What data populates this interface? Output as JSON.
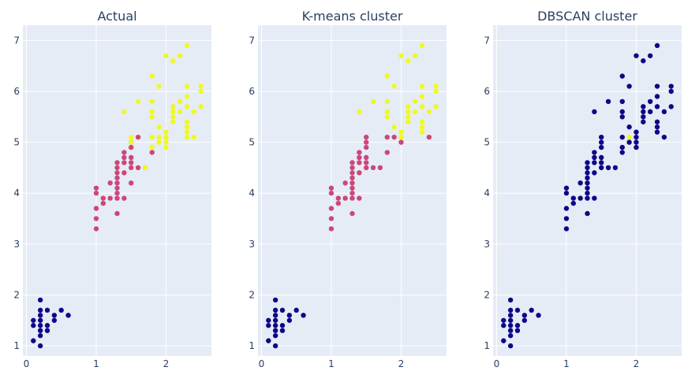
{
  "colors": {
    "plot_bg": "#e5ecf6",
    "grid": "#ffffff",
    "text": "#2a3f5f",
    "setosa": "#0d0887",
    "versicolor": "#cc4778",
    "virginica": "#f0f921"
  },
  "chart_data": [
    {
      "type": "scatter",
      "title": "Actual",
      "xlabel": "",
      "ylabel": "",
      "xlim": [
        -0.05,
        2.65
      ],
      "ylim": [
        0.8,
        7.3
      ],
      "xticks": [
        0,
        1,
        2
      ],
      "yticks": [
        1,
        2,
        3,
        4,
        5,
        6,
        7
      ],
      "grid": true,
      "legend": "none",
      "series": [
        {
          "color_key": "setosa",
          "points": [
            [
              0.1,
              1.1
            ],
            [
              0.1,
              1.4
            ],
            [
              0.1,
              1.5
            ],
            [
              0.2,
              1.0
            ],
            [
              0.2,
              1.2
            ],
            [
              0.2,
              1.3
            ],
            [
              0.2,
              1.4
            ],
            [
              0.2,
              1.5
            ],
            [
              0.2,
              1.6
            ],
            [
              0.2,
              1.7
            ],
            [
              0.2,
              1.9
            ],
            [
              0.3,
              1.3
            ],
            [
              0.3,
              1.4
            ],
            [
              0.3,
              1.7
            ],
            [
              0.4,
              1.5
            ],
            [
              0.4,
              1.6
            ],
            [
              0.5,
              1.7
            ],
            [
              0.6,
              1.6
            ]
          ]
        },
        {
          "color_key": "versicolor",
          "points": [
            [
              1.0,
              3.3
            ],
            [
              1.0,
              3.5
            ],
            [
              1.0,
              3.7
            ],
            [
              1.0,
              4.0
            ],
            [
              1.0,
              4.1
            ],
            [
              1.1,
              3.8
            ],
            [
              1.1,
              3.9
            ],
            [
              1.2,
              3.9
            ],
            [
              1.2,
              4.2
            ],
            [
              1.3,
              3.6
            ],
            [
              1.3,
              3.9
            ],
            [
              1.3,
              4.0
            ],
            [
              1.3,
              4.1
            ],
            [
              1.3,
              4.2
            ],
            [
              1.3,
              4.3
            ],
            [
              1.3,
              4.4
            ],
            [
              1.3,
              4.5
            ],
            [
              1.3,
              4.6
            ],
            [
              1.4,
              3.9
            ],
            [
              1.4,
              4.4
            ],
            [
              1.4,
              4.6
            ],
            [
              1.4,
              4.7
            ],
            [
              1.4,
              4.8
            ],
            [
              1.5,
              4.2
            ],
            [
              1.5,
              4.5
            ],
            [
              1.5,
              4.6
            ],
            [
              1.5,
              4.7
            ],
            [
              1.5,
              4.9
            ],
            [
              1.5,
              5.0
            ],
            [
              1.6,
              4.5
            ],
            [
              1.6,
              5.1
            ],
            [
              1.7,
              4.5
            ],
            [
              1.8,
              4.8
            ]
          ]
        },
        {
          "color_key": "virginica",
          "points": [
            [
              1.4,
              5.6
            ],
            [
              1.5,
              5.0
            ],
            [
              1.5,
              5.1
            ],
            [
              1.6,
              5.8
            ],
            [
              1.7,
              4.5
            ],
            [
              1.8,
              4.9
            ],
            [
              1.8,
              5.1
            ],
            [
              1.8,
              5.5
            ],
            [
              1.8,
              5.6
            ],
            [
              1.8,
              5.8
            ],
            [
              1.8,
              6.3
            ],
            [
              1.9,
              5.0
            ],
            [
              1.9,
              5.1
            ],
            [
              1.9,
              5.3
            ],
            [
              1.9,
              6.1
            ],
            [
              2.0,
              4.9
            ],
            [
              2.0,
              5.0
            ],
            [
              2.0,
              5.1
            ],
            [
              2.0,
              5.2
            ],
            [
              2.0,
              6.7
            ],
            [
              2.1,
              5.4
            ],
            [
              2.1,
              5.5
            ],
            [
              2.1,
              5.6
            ],
            [
              2.1,
              5.7
            ],
            [
              2.1,
              6.6
            ],
            [
              2.2,
              5.6
            ],
            [
              2.2,
              5.8
            ],
            [
              2.2,
              6.7
            ],
            [
              2.3,
              5.1
            ],
            [
              2.3,
              5.2
            ],
            [
              2.3,
              5.3
            ],
            [
              2.3,
              5.4
            ],
            [
              2.3,
              5.7
            ],
            [
              2.3,
              5.9
            ],
            [
              2.3,
              6.1
            ],
            [
              2.3,
              6.9
            ],
            [
              2.4,
              5.1
            ],
            [
              2.4,
              5.6
            ],
            [
              2.5,
              5.7
            ],
            [
              2.5,
              6.0
            ],
            [
              2.5,
              6.1
            ]
          ]
        }
      ]
    },
    {
      "type": "scatter",
      "title": "K-means cluster",
      "xlabel": "",
      "ylabel": "",
      "xlim": [
        -0.05,
        2.65
      ],
      "ylim": [
        0.8,
        7.3
      ],
      "xticks": [
        0,
        1,
        2
      ],
      "yticks": [
        1,
        2,
        3,
        4,
        5,
        6,
        7
      ],
      "grid": true,
      "legend": "none",
      "series": [
        {
          "color_key": "setosa",
          "points": [
            [
              0.1,
              1.1
            ],
            [
              0.1,
              1.4
            ],
            [
              0.1,
              1.5
            ],
            [
              0.2,
              1.0
            ],
            [
              0.2,
              1.2
            ],
            [
              0.2,
              1.3
            ],
            [
              0.2,
              1.4
            ],
            [
              0.2,
              1.5
            ],
            [
              0.2,
              1.6
            ],
            [
              0.2,
              1.7
            ],
            [
              0.2,
              1.9
            ],
            [
              0.3,
              1.3
            ],
            [
              0.3,
              1.4
            ],
            [
              0.3,
              1.7
            ],
            [
              0.4,
              1.5
            ],
            [
              0.4,
              1.6
            ],
            [
              0.5,
              1.7
            ],
            [
              0.6,
              1.6
            ]
          ]
        },
        {
          "color_key": "versicolor",
          "points": [
            [
              1.0,
              3.3
            ],
            [
              1.0,
              3.5
            ],
            [
              1.0,
              3.7
            ],
            [
              1.0,
              4.0
            ],
            [
              1.0,
              4.1
            ],
            [
              1.1,
              3.8
            ],
            [
              1.1,
              3.9
            ],
            [
              1.2,
              3.9
            ],
            [
              1.2,
              4.2
            ],
            [
              1.3,
              3.6
            ],
            [
              1.3,
              3.9
            ],
            [
              1.3,
              4.0
            ],
            [
              1.3,
              4.1
            ],
            [
              1.3,
              4.2
            ],
            [
              1.3,
              4.3
            ],
            [
              1.3,
              4.4
            ],
            [
              1.3,
              4.5
            ],
            [
              1.3,
              4.6
            ],
            [
              1.4,
              3.9
            ],
            [
              1.4,
              4.4
            ],
            [
              1.4,
              4.6
            ],
            [
              1.4,
              4.7
            ],
            [
              1.4,
              4.8
            ],
            [
              1.5,
              4.5
            ],
            [
              1.5,
              4.6
            ],
            [
              1.5,
              4.7
            ],
            [
              1.5,
              4.9
            ],
            [
              1.5,
              5.0
            ],
            [
              1.5,
              5.1
            ],
            [
              1.6,
              4.5
            ],
            [
              1.7,
              4.5
            ],
            [
              1.8,
              4.8
            ],
            [
              1.8,
              5.1
            ],
            [
              1.9,
              5.1
            ],
            [
              2.0,
              5.0
            ],
            [
              2.4,
              5.1
            ]
          ]
        },
        {
          "color_key": "virginica",
          "points": [
            [
              1.4,
              5.6
            ],
            [
              1.6,
              5.8
            ],
            [
              1.8,
              5.5
            ],
            [
              1.8,
              5.6
            ],
            [
              1.8,
              5.8
            ],
            [
              1.8,
              6.3
            ],
            [
              1.9,
              5.3
            ],
            [
              1.9,
              6.1
            ],
            [
              2.0,
              5.1
            ],
            [
              2.0,
              5.2
            ],
            [
              2.0,
              6.7
            ],
            [
              2.1,
              5.4
            ],
            [
              2.1,
              5.5
            ],
            [
              2.1,
              5.6
            ],
            [
              2.1,
              5.7
            ],
            [
              2.1,
              6.6
            ],
            [
              2.2,
              5.6
            ],
            [
              2.2,
              5.8
            ],
            [
              2.2,
              6.7
            ],
            [
              2.3,
              5.2
            ],
            [
              2.3,
              5.3
            ],
            [
              2.3,
              5.4
            ],
            [
              2.3,
              5.7
            ],
            [
              2.3,
              5.9
            ],
            [
              2.3,
              6.1
            ],
            [
              2.3,
              6.9
            ],
            [
              2.4,
              5.6
            ],
            [
              2.5,
              5.7
            ],
            [
              2.5,
              6.0
            ],
            [
              2.5,
              6.1
            ]
          ]
        }
      ]
    },
    {
      "type": "scatter",
      "title": "DBSCAN cluster",
      "xlabel": "",
      "ylabel": "",
      "xlim": [
        -0.05,
        2.65
      ],
      "ylim": [
        0.8,
        7.3
      ],
      "xticks": [
        0,
        1,
        2
      ],
      "yticks": [
        1,
        2,
        3,
        4,
        5,
        6,
        7
      ],
      "grid": true,
      "legend": "none",
      "series": [
        {
          "color_key": "setosa",
          "points": [
            [
              0.1,
              1.1
            ],
            [
              0.1,
              1.4
            ],
            [
              0.1,
              1.5
            ],
            [
              0.2,
              1.0
            ],
            [
              0.2,
              1.2
            ],
            [
              0.2,
              1.3
            ],
            [
              0.2,
              1.4
            ],
            [
              0.2,
              1.5
            ],
            [
              0.2,
              1.6
            ],
            [
              0.2,
              1.7
            ],
            [
              0.2,
              1.9
            ],
            [
              0.3,
              1.3
            ],
            [
              0.3,
              1.4
            ],
            [
              0.3,
              1.7
            ],
            [
              0.4,
              1.5
            ],
            [
              0.4,
              1.6
            ],
            [
              0.5,
              1.7
            ],
            [
              0.6,
              1.6
            ],
            [
              1.0,
              3.3
            ],
            [
              1.0,
              3.5
            ],
            [
              1.0,
              3.7
            ],
            [
              1.0,
              4.0
            ],
            [
              1.0,
              4.1
            ],
            [
              1.1,
              3.8
            ],
            [
              1.1,
              3.9
            ],
            [
              1.2,
              3.9
            ],
            [
              1.2,
              4.2
            ],
            [
              1.3,
              3.6
            ],
            [
              1.3,
              3.9
            ],
            [
              1.3,
              4.0
            ],
            [
              1.3,
              4.1
            ],
            [
              1.3,
              4.2
            ],
            [
              1.3,
              4.3
            ],
            [
              1.3,
              4.4
            ],
            [
              1.3,
              4.5
            ],
            [
              1.3,
              4.6
            ],
            [
              1.4,
              3.9
            ],
            [
              1.4,
              4.4
            ],
            [
              1.4,
              4.6
            ],
            [
              1.4,
              4.7
            ],
            [
              1.4,
              4.8
            ],
            [
              1.4,
              5.6
            ],
            [
              1.5,
              4.5
            ],
            [
              1.5,
              4.6
            ],
            [
              1.5,
              4.7
            ],
            [
              1.5,
              4.9
            ],
            [
              1.5,
              5.0
            ],
            [
              1.5,
              5.1
            ],
            [
              1.6,
              4.5
            ],
            [
              1.6,
              5.8
            ],
            [
              1.7,
              4.5
            ],
            [
              1.8,
              4.8
            ],
            [
              1.8,
              4.9
            ],
            [
              1.8,
              5.1
            ],
            [
              1.8,
              5.5
            ],
            [
              1.8,
              5.6
            ],
            [
              1.8,
              5.8
            ],
            [
              1.8,
              6.3
            ],
            [
              1.9,
              5.0
            ],
            [
              1.9,
              5.3
            ],
            [
              1.9,
              6.1
            ],
            [
              2.0,
              4.9
            ],
            [
              2.0,
              5.0
            ],
            [
              2.0,
              5.1
            ],
            [
              2.0,
              5.2
            ],
            [
              2.0,
              6.7
            ],
            [
              2.1,
              5.4
            ],
            [
              2.1,
              5.5
            ],
            [
              2.1,
              5.6
            ],
            [
              2.1,
              5.7
            ],
            [
              2.1,
              6.6
            ],
            [
              2.2,
              5.6
            ],
            [
              2.2,
              5.8
            ],
            [
              2.2,
              6.7
            ],
            [
              2.3,
              5.2
            ],
            [
              2.3,
              5.3
            ],
            [
              2.3,
              5.4
            ],
            [
              2.3,
              5.7
            ],
            [
              2.3,
              5.9
            ],
            [
              2.3,
              6.1
            ],
            [
              2.3,
              6.9
            ],
            [
              2.4,
              5.1
            ],
            [
              2.4,
              5.6
            ],
            [
              2.5,
              5.7
            ],
            [
              2.5,
              6.0
            ],
            [
              2.5,
              6.1
            ]
          ]
        },
        {
          "color_key": "virginica",
          "points": [
            [
              1.9,
              5.1
            ]
          ]
        }
      ]
    }
  ]
}
